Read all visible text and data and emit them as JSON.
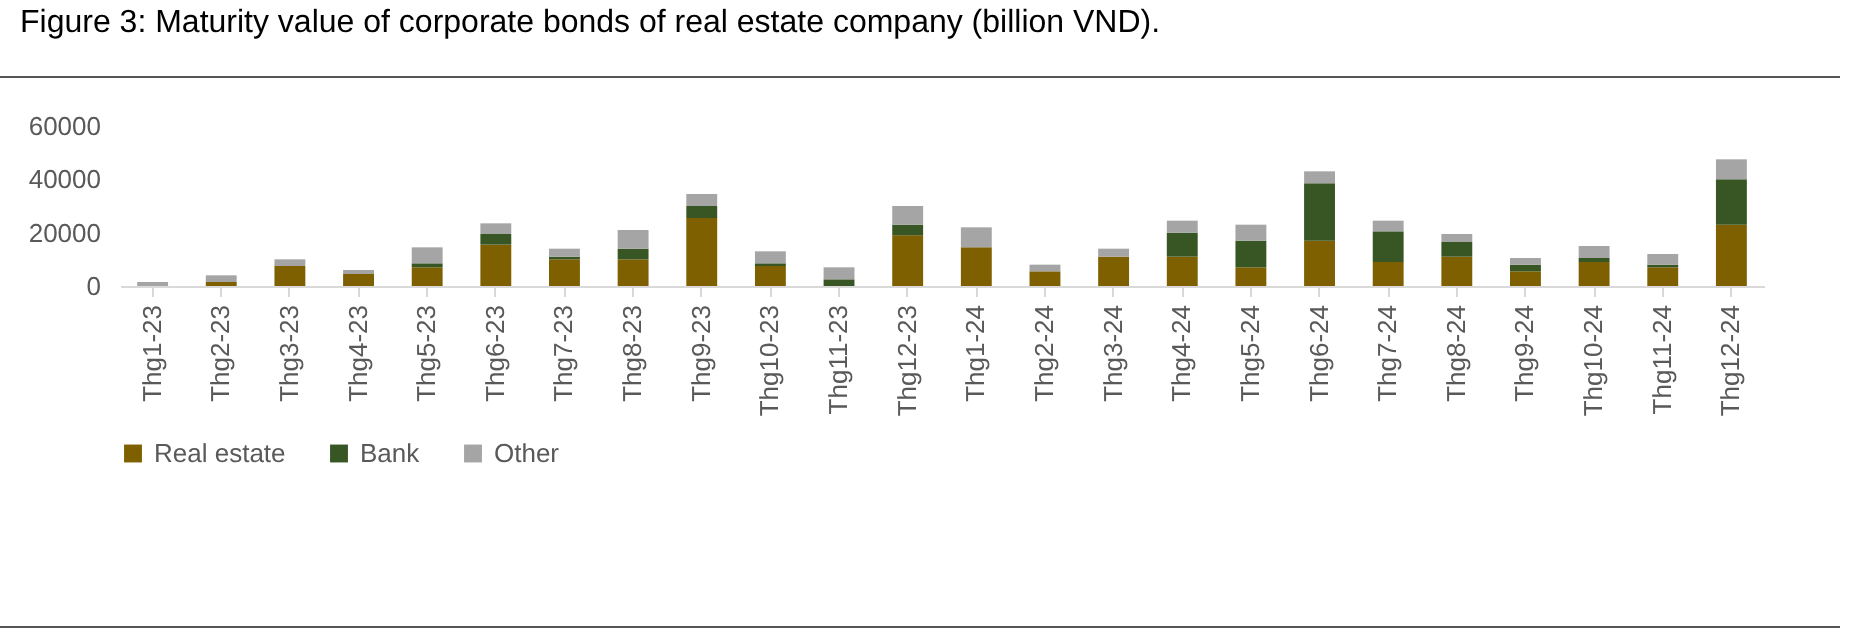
{
  "chart_data": {
    "type": "bar",
    "title": "Figure 3: Maturity value of corporate bonds of real estate company (billion VND).",
    "categories": [
      "Thg1-23",
      "Thg2-23",
      "Thg3-23",
      "Thg4-23",
      "Thg5-23",
      "Thg6-23",
      "Thg7-23",
      "Thg8-23",
      "Thg9-23",
      "Thg10-23",
      "Thg11-23",
      "Thg12-23",
      "Thg1-24",
      "Thg2-24",
      "Thg3-24",
      "Thg4-24",
      "Thg5-24",
      "Thg6-24",
      "Thg7-24",
      "Thg8-24",
      "Thg9-24",
      "Thg10-24",
      "Thg11-24",
      "Thg12-24"
    ],
    "stacked": true,
    "series": [
      {
        "name": "Real estate",
        "color": "#7f6000",
        "values": [
          0,
          1500,
          7500,
          4500,
          7000,
          15500,
          10000,
          10000,
          25500,
          7500,
          0,
          19000,
          14500,
          5500,
          11000,
          11000,
          7000,
          17000,
          9000,
          11000,
          5500,
          9000,
          7000,
          23000
        ]
      },
      {
        "name": "Bank",
        "color": "#375623",
        "values": [
          0,
          0,
          0,
          0,
          1500,
          4000,
          1000,
          4000,
          4500,
          1000,
          2500,
          4000,
          0,
          0,
          0,
          9000,
          10000,
          21500,
          11500,
          5500,
          2500,
          1500,
          1000,
          17000
        ]
      },
      {
        "name": "Other",
        "color": "#a5a5a5",
        "values": [
          1500,
          2500,
          2500,
          1500,
          6000,
          4000,
          3000,
          7000,
          4500,
          4500,
          4500,
          7000,
          7500,
          2500,
          3000,
          4500,
          6000,
          4500,
          4000,
          3000,
          2500,
          4500,
          4000,
          7500
        ]
      }
    ],
    "ylim": [
      0,
      60000
    ],
    "yticks": [
      0,
      20000,
      40000,
      60000
    ],
    "grid": false,
    "legend": "bottom"
  }
}
